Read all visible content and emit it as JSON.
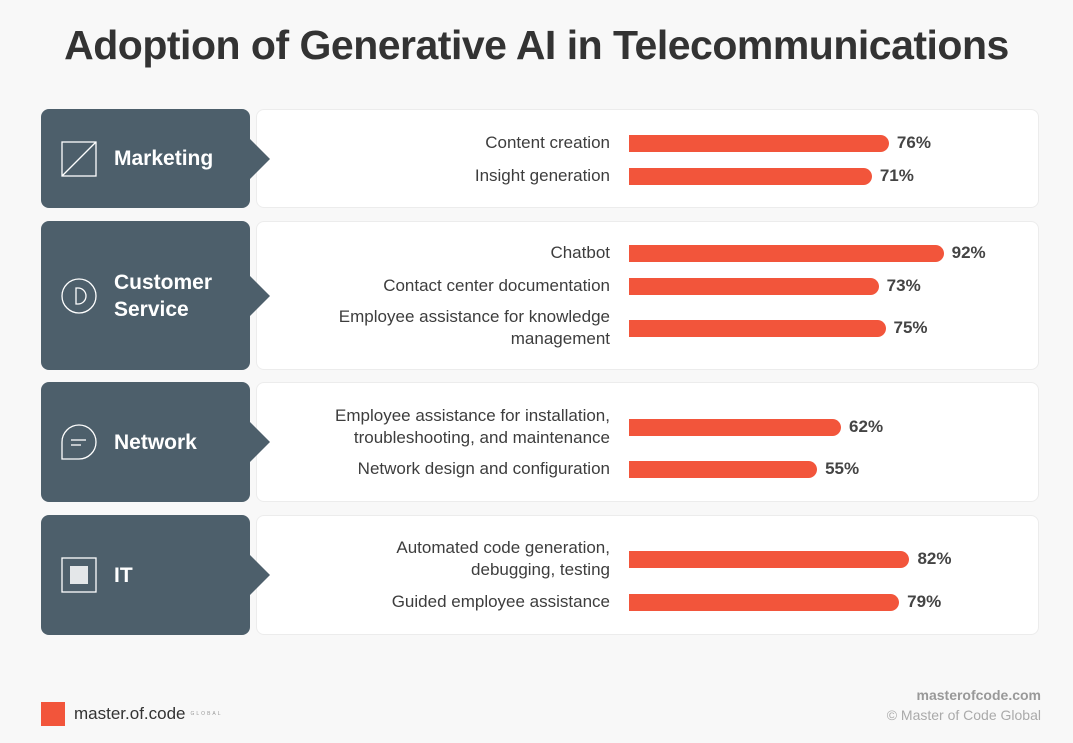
{
  "chart_data": {
    "type": "bar",
    "orientation": "horizontal",
    "title": "Adoption of Generative AI in Telecommunications",
    "unit": "%",
    "bar_color": "#f2553b",
    "category_color": "#4d5f6b",
    "groups": [
      {
        "name": "Marketing",
        "icon": "square-slash-icon",
        "items": [
          {
            "label": "Content creation",
            "value": 76
          },
          {
            "label": "Insight generation",
            "value": 71
          }
        ]
      },
      {
        "name": "Customer Service",
        "icon": "circle-d-icon",
        "items": [
          {
            "label": "Chatbot",
            "value": 92
          },
          {
            "label": "Contact center documentation",
            "value": 73
          },
          {
            "label": "Employee assistance for knowledge management",
            "value": 75
          }
        ]
      },
      {
        "name": "Network",
        "icon": "chat-bubble-icon",
        "items": [
          {
            "label": "Employee assistance for installation, troubleshooting, and maintenance",
            "value": 62
          },
          {
            "label": "Network design and configuration",
            "value": 55
          }
        ]
      },
      {
        "name": "IT",
        "icon": "grid-square-icon",
        "items": [
          {
            "label": "Automated code generation, debugging, testing",
            "value": 82
          },
          {
            "label": "Guided employee assistance",
            "value": 79
          }
        ]
      }
    ]
  },
  "footer": {
    "logo": "master.of.code",
    "logo_sub": "GLOBAL",
    "site": "masterofcode.com",
    "copyright": "© Master of Code Global"
  }
}
